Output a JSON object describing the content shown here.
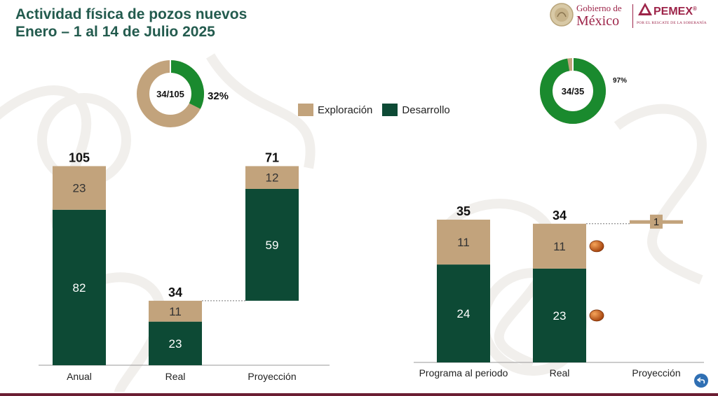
{
  "title": {
    "line1": "Actividad física de pozos nuevos",
    "line2": "Enero – 1 al 14 de Julio 2025"
  },
  "logos": {
    "gob_line1": "Gobierno de",
    "gob_line2": "México",
    "pemex": "PEMEX",
    "pemex_reg": "®",
    "pemex_slogan": "POR EL RESCATE DE LA SOBERANÍA"
  },
  "legend": {
    "exploracion": "Exploración",
    "desarrollo": "Desarrollo"
  },
  "colors": {
    "exploracion": "#c2a37c",
    "desarrollo": "#0d4a35",
    "donut_desarrollo": "#1a8a2e",
    "title": "#235b4e",
    "brand": "#9d2449"
  },
  "donuts": [
    {
      "center_label": "34/105",
      "pct_label": "32%",
      "fraction": 0.3238
    },
    {
      "center_label": "34/35",
      "pct_label": "97%",
      "fraction": 0.9714
    }
  ],
  "chart_data": [
    {
      "type": "bar",
      "stacked": true,
      "waterfall": true,
      "categories": [
        "Anual",
        "Real",
        "Proyección"
      ],
      "series": [
        {
          "name": "Desarrollo",
          "values": [
            82,
            23,
            59
          ]
        },
        {
          "name": "Exploración",
          "values": [
            23,
            11,
            12
          ]
        }
      ],
      "base": [
        0,
        0,
        34
      ],
      "totals": [
        "105",
        "34",
        "71"
      ],
      "ylim": [
        0,
        105
      ],
      "legend": "top-center"
    },
    {
      "type": "bar",
      "stacked": true,
      "waterfall": true,
      "categories": [
        "Programa al periodo",
        "Real",
        "Proyección"
      ],
      "series": [
        {
          "name": "Desarrollo",
          "values": [
            24,
            23,
            0
          ]
        },
        {
          "name": "Exploración",
          "values": [
            11,
            11,
            1
          ]
        }
      ],
      "base": [
        0,
        0,
        34
      ],
      "totals": [
        "35",
        "34",
        ""
      ],
      "ylim": [
        0,
        35
      ],
      "legend": "top-center"
    }
  ]
}
